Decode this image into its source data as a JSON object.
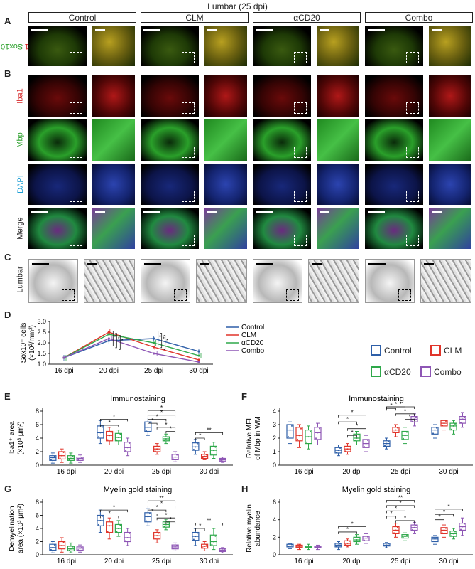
{
  "figure": {
    "title": "Lumbar  (25 dpi)",
    "groups": [
      "Control",
      "CLM",
      "αCD20",
      "Combo"
    ],
    "panel_labels": [
      "A",
      "B",
      "C",
      "D",
      "E",
      "F",
      "G",
      "H"
    ],
    "rows": {
      "a_left": "Sox10",
      "a_slash": "/",
      "a_right": "Iba1",
      "iba1": "Iba1",
      "mbp": "Mbp",
      "dapi": "DAPI",
      "merge": "Merge",
      "lumbar": "Lumbar"
    },
    "colors": {
      "control": "#2e5fa8",
      "clm": "#e0342a",
      "acd20": "#2ea84a",
      "combo": "#8e56b5",
      "iba1_text": "#d62728",
      "mbp_text": "#2ca02c",
      "dapi_text": "#1f9fd6"
    }
  },
  "legend_main": {
    "items": [
      "Control",
      "CLM",
      "αCD20",
      "Combo"
    ]
  },
  "chart_data": [
    {
      "id": "D",
      "type": "line",
      "ylabel_line1": "Sox10⁺ cells",
      "ylabel_line2": "(×10²/mm²)",
      "categories": [
        "16 dpi",
        "20 dpi",
        "25 dpi",
        "30 dpi"
      ],
      "ylim": [
        1.0,
        3.0
      ],
      "yticks": [
        "1.0",
        "1.5",
        "2.0",
        "2.5",
        "3.0"
      ],
      "legend": [
        "Control",
        "CLM",
        "αCD20",
        "Combo"
      ],
      "series": [
        {
          "name": "Control",
          "values": [
            1.3,
            2.1,
            2.2,
            1.6
          ]
        },
        {
          "name": "CLM",
          "values": [
            1.3,
            2.5,
            1.8,
            1.2
          ]
        },
        {
          "name": "αCD20",
          "values": [
            1.3,
            2.4,
            2.0,
            1.4
          ]
        },
        {
          "name": "Combo",
          "values": [
            1.3,
            2.2,
            1.5,
            1.1
          ]
        }
      ]
    },
    {
      "id": "E",
      "type": "box",
      "title": "Immunostaining",
      "ylabel_line1": "Iba1⁺ area",
      "ylabel_line2": "(×10³ μm²)",
      "categories": [
        "16 dpi",
        "20 dpi",
        "25 dpi",
        "30 dpi"
      ],
      "ylim": [
        0,
        8
      ],
      "yticks": [
        "0",
        "2",
        "4",
        "6",
        "8"
      ],
      "boxes": [
        [
          [
            0.3,
            0.7,
            1.1,
            1.4,
            1.8
          ],
          [
            0.4,
            0.9,
            1.4,
            2.0,
            2.4
          ],
          [
            0.3,
            0.7,
            1.0,
            1.4,
            1.8
          ],
          [
            0.4,
            0.7,
            1.0,
            1.2,
            1.5
          ]
        ],
        [
          [
            3.2,
            4.0,
            4.8,
            5.8,
            6.6
          ],
          [
            3.0,
            3.6,
            4.4,
            5.0,
            5.6
          ],
          [
            3.0,
            3.6,
            4.1,
            4.7,
            5.2
          ],
          [
            1.4,
            2.0,
            2.6,
            3.4,
            4.0
          ]
        ],
        [
          [
            4.4,
            5.0,
            5.6,
            6.4,
            7.0
          ],
          [
            1.6,
            2.0,
            2.4,
            2.8,
            3.2
          ],
          [
            3.2,
            3.6,
            3.9,
            4.2,
            4.6
          ],
          [
            0.5,
            0.8,
            1.2,
            1.6,
            2.0
          ]
        ],
        [
          [
            1.6,
            2.2,
            2.7,
            3.3,
            3.8
          ],
          [
            0.8,
            1.0,
            1.3,
            1.6,
            2.0
          ],
          [
            1.0,
            1.5,
            2.2,
            2.8,
            3.4
          ],
          [
            0.4,
            0.6,
            0.8,
            1.0,
            1.2
          ]
        ]
      ],
      "sig": [
        {
          "from": [
            1,
            0
          ],
          "to": [
            1,
            3
          ],
          "y": 6.8,
          "label": "*"
        },
        {
          "from": [
            1,
            0
          ],
          "to": [
            1,
            2
          ],
          "y": 5.9,
          "label": "*"
        },
        {
          "from": [
            2,
            0
          ],
          "to": [
            2,
            3
          ],
          "y": 8.1,
          "label": "*"
        },
        {
          "from": [
            2,
            0
          ],
          "to": [
            2,
            3
          ],
          "y": 7.4,
          "label": "*"
        },
        {
          "from": [
            2,
            0
          ],
          "to": [
            2,
            2
          ],
          "y": 6.8,
          "label": "*"
        },
        {
          "from": [
            2,
            0
          ],
          "to": [
            2,
            1
          ],
          "y": 6.2,
          "label": "*"
        },
        {
          "from": [
            2,
            1
          ],
          "to": [
            2,
            3
          ],
          "y": 5.6,
          "label": "*"
        },
        {
          "from": [
            2,
            2
          ],
          "to": [
            2,
            3
          ],
          "y": 5.0,
          "label": "*"
        },
        {
          "from": [
            3,
            0
          ],
          "to": [
            3,
            3
          ],
          "y": 4.8,
          "label": "**"
        },
        {
          "from": [
            3,
            0
          ],
          "to": [
            3,
            1
          ],
          "y": 4.0,
          "label": "*"
        }
      ]
    },
    {
      "id": "F",
      "type": "box",
      "title": "Immunostaining",
      "ylabel_line1": "Relative MFI",
      "ylabel_line2": "of Mbp in WM",
      "categories": [
        "16 dpi",
        "20 dpi",
        "25 dpi",
        "30 dpi"
      ],
      "ylim": [
        0,
        4
      ],
      "yticks": [
        "0",
        "1",
        "2",
        "3",
        "4"
      ],
      "boxes": [
        [
          [
            1.6,
            2.0,
            2.6,
            3.0,
            3.2
          ],
          [
            1.3,
            1.8,
            2.2,
            2.8,
            3.0
          ],
          [
            1.2,
            1.6,
            2.1,
            2.6,
            2.9
          ],
          [
            1.5,
            1.9,
            2.4,
            2.8,
            3.1
          ]
        ],
        [
          [
            0.7,
            0.9,
            1.1,
            1.3,
            1.5
          ],
          [
            0.8,
            1.0,
            1.2,
            1.4,
            1.6
          ],
          [
            1.5,
            1.8,
            2.0,
            2.3,
            2.5
          ],
          [
            1.0,
            1.3,
            1.6,
            1.9,
            2.2
          ]
        ],
        [
          [
            1.2,
            1.4,
            1.6,
            1.8,
            2.0
          ],
          [
            2.1,
            2.4,
            2.6,
            2.8,
            3.0
          ],
          [
            1.6,
            1.9,
            2.2,
            2.5,
            2.8
          ],
          [
            2.9,
            3.2,
            3.4,
            3.6,
            3.8
          ]
        ],
        [
          [
            2.0,
            2.3,
            2.6,
            2.8,
            3.0
          ],
          [
            2.6,
            2.9,
            3.1,
            3.3,
            3.5
          ],
          [
            2.3,
            2.6,
            2.9,
            3.1,
            3.3
          ],
          [
            2.8,
            3.1,
            3.4,
            3.6,
            3.9
          ]
        ]
      ],
      "sig": [
        {
          "from": [
            1,
            0
          ],
          "to": [
            1,
            3
          ],
          "y": 3.7,
          "label": "*"
        },
        {
          "from": [
            1,
            0
          ],
          "to": [
            1,
            2
          ],
          "y": 3.2,
          "label": "*"
        },
        {
          "from": [
            1,
            1
          ],
          "to": [
            1,
            3
          ],
          "y": 2.7,
          "label": "*"
        },
        {
          "from": [
            1,
            1
          ],
          "to": [
            1,
            2
          ],
          "y": 2.2,
          "label": "*"
        },
        {
          "from": [
            2,
            0
          ],
          "to": [
            2,
            3
          ],
          "y": 5.0,
          "label": "*"
        },
        {
          "from": [
            2,
            0
          ],
          "to": [
            2,
            2
          ],
          "y": 4.6,
          "label": "*"
        },
        {
          "from": [
            2,
            0
          ],
          "to": [
            2,
            1
          ],
          "y": 4.2,
          "label": "*"
        },
        {
          "from": [
            2,
            1
          ],
          "to": [
            2,
            3
          ],
          "y": 3.8,
          "label": "*"
        },
        {
          "from": [
            2,
            2
          ],
          "to": [
            2,
            3
          ],
          "y": 3.4,
          "label": "*"
        }
      ]
    },
    {
      "id": "G",
      "type": "box",
      "title": "Myelin gold staining",
      "ylabel_line1": "Demyelination",
      "ylabel_line2": "area (×10³ μm²)",
      "categories": [
        "16 dpi",
        "20 dpi",
        "25 dpi",
        "30 dpi"
      ],
      "ylim": [
        0,
        8
      ],
      "yticks": [
        "0",
        "2",
        "4",
        "6",
        "8"
      ],
      "boxes": [
        [
          [
            0.3,
            0.7,
            1.1,
            1.6,
            2.0
          ],
          [
            0.4,
            0.9,
            1.4,
            2.0,
            2.6
          ],
          [
            0.3,
            0.6,
            0.9,
            1.3,
            1.8
          ],
          [
            0.4,
            0.7,
            1.0,
            1.2,
            1.5
          ]
        ],
        [
          [
            3.4,
            4.4,
            5.2,
            6.0,
            6.8
          ],
          [
            2.4,
            3.4,
            4.4,
            5.0,
            5.6
          ],
          [
            2.8,
            3.4,
            4.0,
            4.6,
            5.2
          ],
          [
            1.4,
            2.0,
            2.6,
            3.4,
            4.0
          ]
        ],
        [
          [
            4.4,
            5.0,
            5.8,
            6.4,
            7.0
          ],
          [
            1.8,
            2.4,
            2.9,
            3.4,
            3.8
          ],
          [
            3.8,
            4.2,
            4.6,
            5.0,
            5.4
          ],
          [
            0.6,
            0.9,
            1.2,
            1.5,
            1.8
          ]
        ],
        [
          [
            1.4,
            2.2,
            2.8,
            3.4,
            4.0
          ],
          [
            0.6,
            1.0,
            1.3,
            1.6,
            2.0
          ],
          [
            0.8,
            1.4,
            2.0,
            3.0,
            4.0
          ],
          [
            0.3,
            0.5,
            0.7,
            0.9,
            1.1
          ]
        ]
      ],
      "sig": [
        {
          "from": [
            1,
            0
          ],
          "to": [
            1,
            3
          ],
          "y": 6.8,
          "label": "*"
        },
        {
          "from": [
            1,
            0
          ],
          "to": [
            1,
            2
          ],
          "y": 5.9,
          "label": "*"
        },
        {
          "from": [
            2,
            0
          ],
          "to": [
            2,
            3
          ],
          "y": 8.2,
          "label": "**"
        },
        {
          "from": [
            2,
            0
          ],
          "to": [
            2,
            3
          ],
          "y": 7.4,
          "label": "*"
        },
        {
          "from": [
            2,
            0
          ],
          "to": [
            2,
            2
          ],
          "y": 6.8,
          "label": "*"
        },
        {
          "from": [
            2,
            0
          ],
          "to": [
            2,
            1
          ],
          "y": 6.2,
          "label": "*"
        },
        {
          "from": [
            2,
            1
          ],
          "to": [
            2,
            3
          ],
          "y": 5.6,
          "label": "*"
        },
        {
          "from": [
            2,
            2
          ],
          "to": [
            2,
            3
          ],
          "y": 5.0,
          "label": "*"
        },
        {
          "from": [
            3,
            0
          ],
          "to": [
            3,
            3
          ],
          "y": 4.8,
          "label": "**"
        },
        {
          "from": [
            3,
            0
          ],
          "to": [
            3,
            1
          ],
          "y": 4.0,
          "label": "*"
        }
      ]
    },
    {
      "id": "H",
      "type": "box",
      "title": "Myelin gold staining",
      "ylabel_line1": "Relative myelin",
      "ylabel_line2": "abundance",
      "categories": [
        "16 dpi",
        "20 dpi",
        "25 dpi",
        "30 dpi"
      ],
      "ylim": [
        0,
        6
      ],
      "yticks": [
        "0",
        "2",
        "4",
        "6"
      ],
      "boxes": [
        [
          [
            0.7,
            0.9,
            1.0,
            1.2,
            1.3
          ],
          [
            0.6,
            0.8,
            0.9,
            1.1,
            1.2
          ],
          [
            0.6,
            0.8,
            0.9,
            1.0,
            1.2
          ],
          [
            0.6,
            0.8,
            0.9,
            1.0,
            1.1
          ]
        ],
        [
          [
            0.6,
            0.9,
            1.1,
            1.3,
            1.5
          ],
          [
            0.9,
            1.1,
            1.3,
            1.6,
            1.8
          ],
          [
            1.2,
            1.5,
            1.7,
            2.0,
            2.3
          ],
          [
            1.3,
            1.6,
            1.9,
            2.1,
            2.4
          ]
        ],
        [
          [
            0.8,
            1.0,
            1.1,
            1.3,
            1.4
          ],
          [
            2.0,
            2.4,
            2.8,
            3.2,
            3.6
          ],
          [
            1.6,
            1.9,
            2.1,
            2.3,
            2.5
          ],
          [
            2.4,
            2.8,
            3.1,
            3.4,
            3.7
          ]
        ],
        [
          [
            1.2,
            1.5,
            1.8,
            2.0,
            2.2
          ],
          [
            2.0,
            2.4,
            2.8,
            3.1,
            3.4
          ],
          [
            1.8,
            2.1,
            2.4,
            2.7,
            3.0
          ],
          [
            2.2,
            2.8,
            3.2,
            3.6,
            4.2
          ]
        ]
      ],
      "sig": [
        {
          "from": [
            1,
            0
          ],
          "to": [
            1,
            3
          ],
          "y": 3.2,
          "label": "*"
        },
        {
          "from": [
            1,
            0
          ],
          "to": [
            1,
            2
          ],
          "y": 2.6,
          "label": "*"
        },
        {
          "from": [
            2,
            0
          ],
          "to": [
            2,
            3
          ],
          "y": 6.2,
          "label": "**"
        },
        {
          "from": [
            2,
            0
          ],
          "to": [
            2,
            3
          ],
          "y": 5.6,
          "label": "*"
        },
        {
          "from": [
            2,
            0
          ],
          "to": [
            2,
            2
          ],
          "y": 5.0,
          "label": "*"
        },
        {
          "from": [
            2,
            0
          ],
          "to": [
            2,
            1
          ],
          "y": 4.4,
          "label": "*"
        },
        {
          "from": [
            2,
            1
          ],
          "to": [
            2,
            3
          ],
          "y": 3.9,
          "label": "*"
        },
        {
          "from": [
            3,
            0
          ],
          "to": [
            3,
            3
          ],
          "y": 5.2,
          "label": "*"
        },
        {
          "from": [
            3,
            0
          ],
          "to": [
            3,
            2
          ],
          "y": 4.6,
          "label": "*"
        },
        {
          "from": [
            3,
            0
          ],
          "to": [
            3,
            1
          ],
          "y": 4.0,
          "label": "*"
        }
      ]
    }
  ]
}
